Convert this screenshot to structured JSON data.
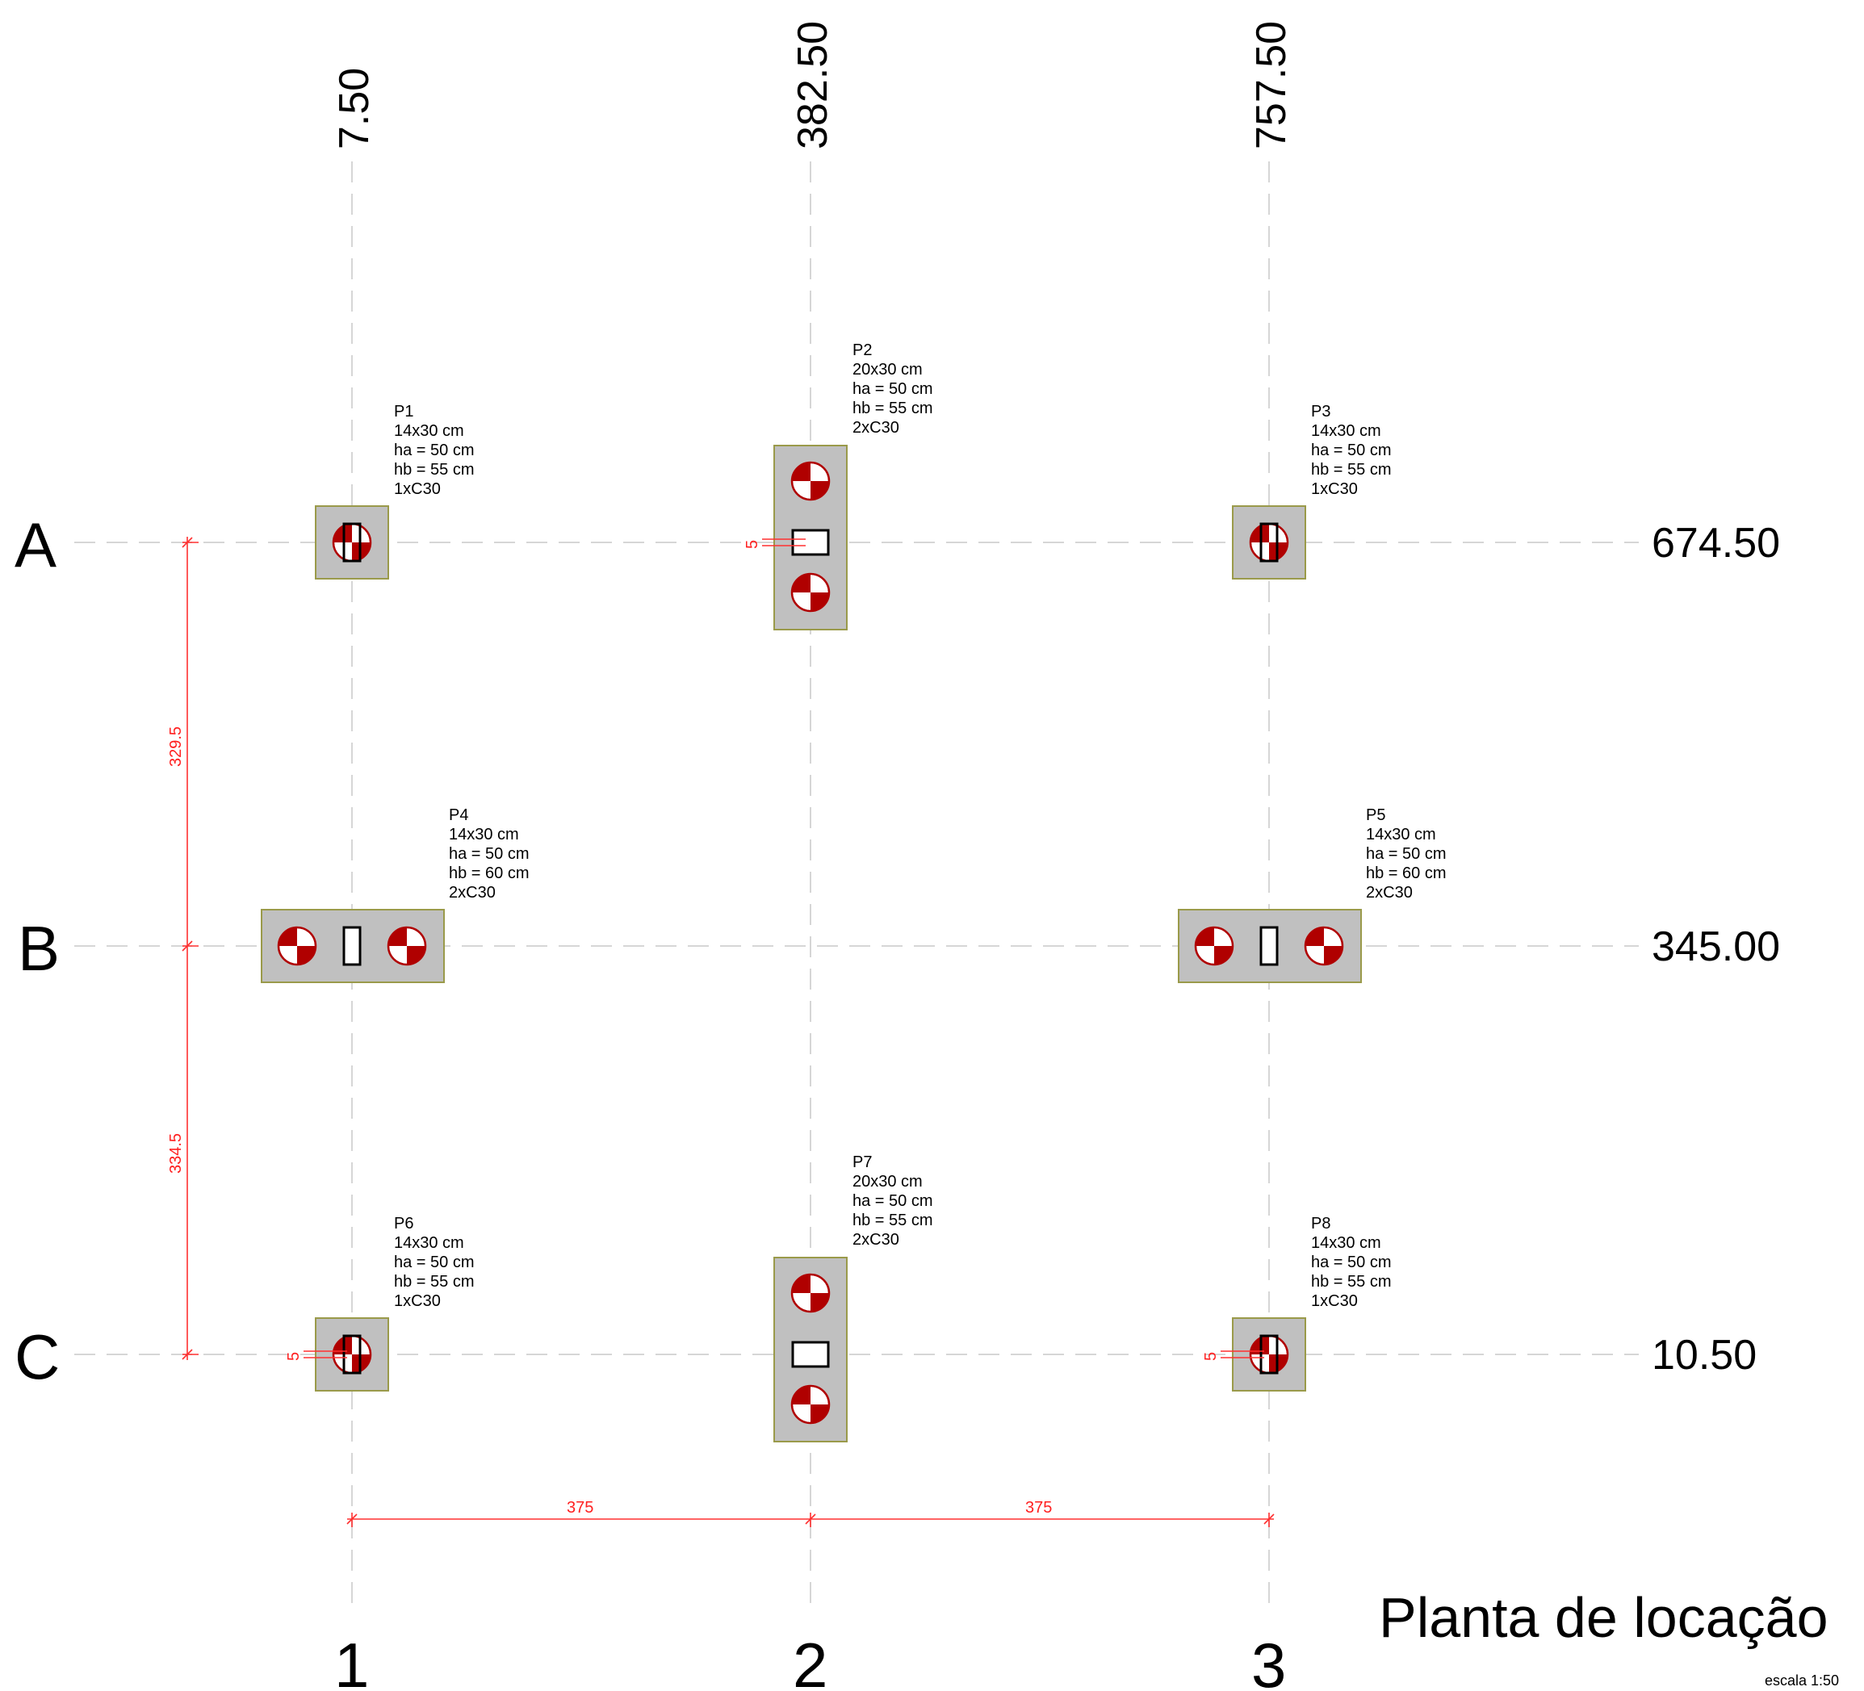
{
  "drawing": {
    "title": "Planta de locação",
    "scale": "escala 1:50"
  },
  "columns": [
    {
      "label": "1",
      "coord": "7.50"
    },
    {
      "label": "2",
      "coord": "382.50"
    },
    {
      "label": "3",
      "coord": "757.50"
    }
  ],
  "rows": [
    {
      "label": "A",
      "coord": "674.50"
    },
    {
      "label": "B",
      "coord": "345.00"
    },
    {
      "label": "C",
      "coord": "10.50"
    }
  ],
  "pillars": [
    {
      "name": "P1",
      "section": "14x30 cm",
      "ha": "ha = 50 cm",
      "hb": "hb = 55 cm",
      "piles": "1xC30",
      "column": 1,
      "row": "A",
      "pile_count": 1,
      "cap": "single"
    },
    {
      "name": "P2",
      "section": "20x30 cm",
      "ha": "ha = 50 cm",
      "hb": "hb = 55 cm",
      "piles": "2xC30",
      "column": 2,
      "row": "A",
      "pile_count": 2,
      "cap": "vertical",
      "offset_label": "5"
    },
    {
      "name": "P3",
      "section": "14x30 cm",
      "ha": "ha = 50 cm",
      "hb": "hb = 55 cm",
      "piles": "1xC30",
      "column": 3,
      "row": "A",
      "pile_count": 1,
      "cap": "single"
    },
    {
      "name": "P4",
      "section": "14x30 cm",
      "ha": "ha = 50 cm",
      "hb": "hb = 60 cm",
      "piles": "2xC30",
      "column": 1,
      "row": "B",
      "pile_count": 2,
      "cap": "horizontal"
    },
    {
      "name": "P5",
      "section": "14x30 cm",
      "ha": "ha = 50 cm",
      "hb": "hb = 60 cm",
      "piles": "2xC30",
      "column": 3,
      "row": "B",
      "pile_count": 2,
      "cap": "horizontal"
    },
    {
      "name": "P6",
      "section": "14x30 cm",
      "ha": "ha = 50 cm",
      "hb": "hb = 55 cm",
      "piles": "1xC30",
      "column": 1,
      "row": "C",
      "pile_count": 1,
      "cap": "single",
      "offset_label": "5"
    },
    {
      "name": "P7",
      "section": "20x30 cm",
      "ha": "ha = 50 cm",
      "hb": "hb = 55 cm",
      "piles": "2xC30",
      "column": 2,
      "row": "C",
      "pile_count": 2,
      "cap": "vertical"
    },
    {
      "name": "P8",
      "section": "14x30 cm",
      "ha": "ha = 50 cm",
      "hb": "hb = 55 cm",
      "piles": "1xC30",
      "column": 3,
      "row": "C",
      "pile_count": 1,
      "cap": "single",
      "offset_label": "5"
    }
  ],
  "dimensions": {
    "vertical": [
      "329.5",
      "334.5"
    ],
    "horizontal": [
      "375",
      "375"
    ]
  },
  "colors": {
    "pile": "#b00000",
    "cap_fill": "#c0c0c0",
    "dimension": "#ff3030",
    "grid": "#d6d6d6"
  }
}
